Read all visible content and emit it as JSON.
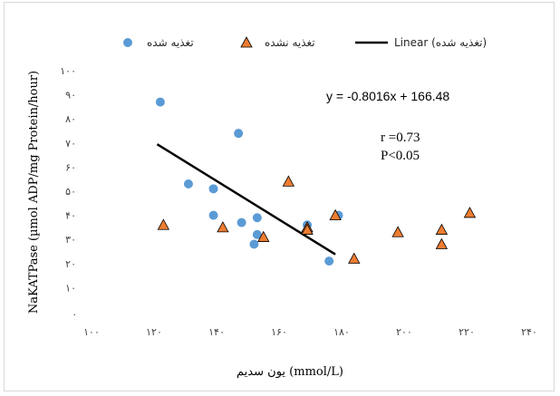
{
  "chart_data": {
    "type": "scatter",
    "title": "",
    "xlabel": "یون سدیم (mmol/L)",
    "ylabel": "NaKATPase (µmol ADP/mg Protein/hour)",
    "xlim": [
      100,
      240
    ],
    "ylim": [
      0,
      100
    ],
    "x_ticks": [
      "۱۰۰",
      "۱۲۰",
      "۱۴۰",
      "۱۶۰",
      "۱۸۰",
      "۲۰۰",
      "۲۲۰",
      "۲۴۰"
    ],
    "y_ticks": [
      ".",
      "۱۰",
      "۲۰",
      "۳۰",
      "۴۰",
      "۵۰",
      "۶۰",
      "۷۰",
      "۸۰",
      "۹۰",
      "۱۰۰"
    ],
    "grid": false,
    "legend_position": "top",
    "series": [
      {
        "name": "تغذیه شده",
        "marker": "circle",
        "color": "#5B9BD5",
        "points": [
          [
            122,
            87
          ],
          [
            131,
            53
          ],
          [
            139,
            51
          ],
          [
            139,
            40
          ],
          [
            147,
            74
          ],
          [
            148,
            37
          ],
          [
            152,
            28
          ],
          [
            153,
            32
          ],
          [
            153,
            39
          ],
          [
            169,
            36
          ],
          [
            176,
            21
          ],
          [
            179,
            40
          ]
        ]
      },
      {
        "name": "تغذیه نشده",
        "marker": "triangle",
        "color": "#ED7D31",
        "points": [
          [
            123,
            36
          ],
          [
            142,
            35
          ],
          [
            155,
            31
          ],
          [
            163,
            54
          ],
          [
            169,
            35
          ],
          [
            169,
            34
          ],
          [
            178,
            40
          ],
          [
            184,
            22
          ],
          [
            198,
            33
          ],
          [
            212,
            34
          ],
          [
            212,
            28
          ],
          [
            221,
            41
          ]
        ]
      }
    ],
    "trendline": {
      "name": "Linear (تغذیه شده)",
      "color": "#000000",
      "x_range": [
        121,
        178
      ],
      "slope": -0.8016,
      "intercept": 166.48,
      "equation": "y = -0.8016x + 166.48"
    },
    "annotations": [
      "r =0.73",
      "P<0.05"
    ]
  }
}
